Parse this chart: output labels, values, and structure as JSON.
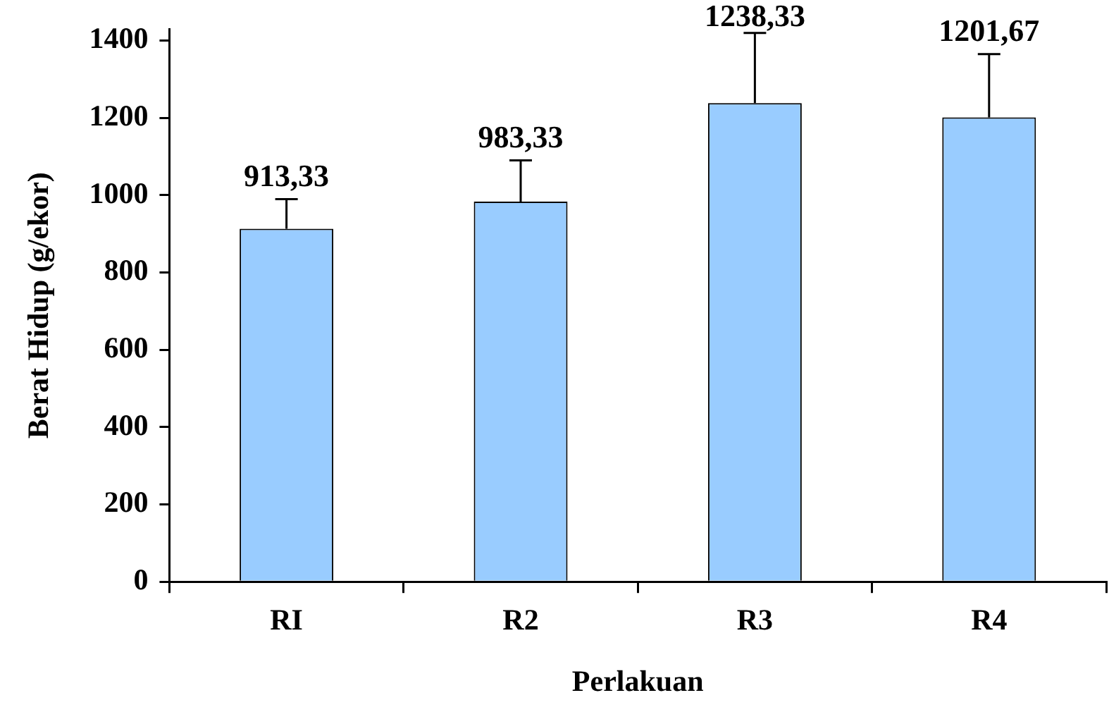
{
  "chart_data": {
    "type": "bar",
    "xlabel": "Perlakuan",
    "ylabel": "Berat Hidup (g/ekor)",
    "categories": [
      "RI",
      "R2",
      "R3",
      "R4"
    ],
    "values": [
      913.33,
      983.33,
      1238.33,
      1201.67
    ],
    "value_labels": [
      "913,33",
      "983,33",
      "1238,33",
      "1201,67"
    ],
    "errors": [
      [
        913.33,
        990
      ],
      [
        983.33,
        1090
      ],
      [
        1238.33,
        1420
      ],
      [
        1201.67,
        1365
      ]
    ],
    "color": "#99ccff",
    "ylim": [
      0,
      1430
    ],
    "yticks": [
      0,
      200,
      400,
      600,
      800,
      1000,
      1200,
      1400
    ],
    "grid": false,
    "legend": false
  }
}
